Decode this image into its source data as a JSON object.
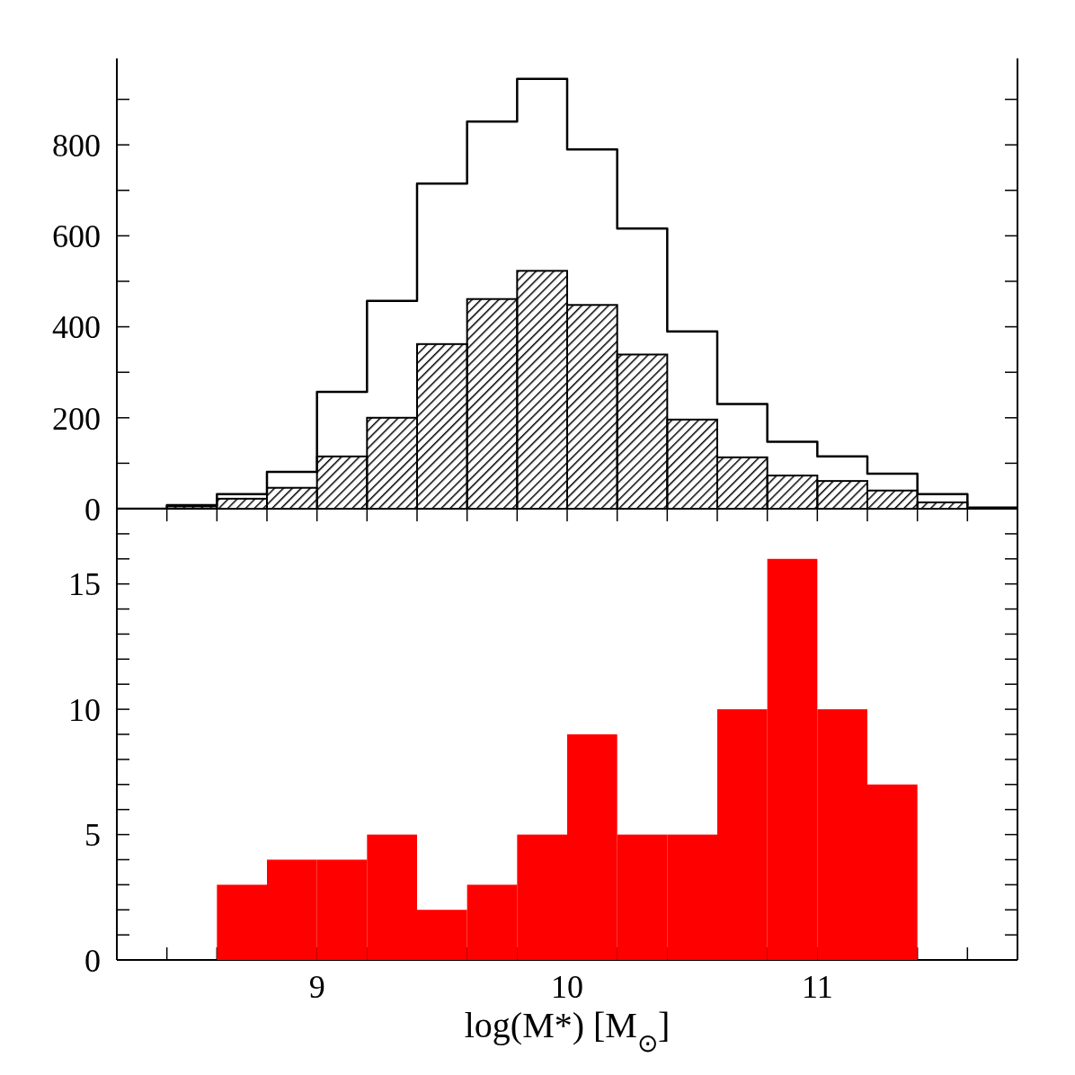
{
  "chart_data": [
    {
      "type": "histogram",
      "bins": [
        8.2,
        8.4,
        8.6,
        8.8,
        9.0,
        9.2,
        9.4,
        9.6,
        9.8,
        10.0,
        10.2,
        10.4,
        10.6,
        10.8,
        11.0,
        11.2,
        11.4,
        11.6,
        11.8
      ],
      "series": [
        {
          "type": "step",
          "color": "#000000",
          "x": [
            8.2,
            8.4,
            8.6,
            8.8,
            9.0,
            9.2,
            9.4,
            9.6,
            9.8,
            10.0,
            10.2,
            10.4,
            10.6,
            10.8,
            11.0,
            11.2,
            11.4,
            11.6
          ],
          "values": [
            0,
            8,
            32,
            81,
            257,
            457,
            715,
            851,
            945,
            790,
            616,
            390,
            230,
            147,
            115,
            77,
            32,
            6
          ]
        },
        {
          "color": "#000000",
          "values": [
            0,
            5,
            22,
            46,
            115,
            200,
            362,
            461,
            523,
            448,
            339,
            196,
            113,
            73,
            61,
            40,
            14,
            3
          ]
        }
      ],
      "xlim": [
        8.2,
        11.8
      ],
      "xticks": [
        {
          "value": 8.4,
          "label": null
        },
        {
          "value": 8.6,
          "label": null
        },
        {
          "value": 8.8,
          "label": null
        },
        {
          "value": 9,
          "label": null
        },
        {
          "value": 9.2,
          "label": null
        },
        {
          "value": 9.4,
          "label": null
        },
        {
          "value": 9.6,
          "label": null
        },
        {
          "value": 9.8,
          "label": null
        },
        {
          "value": 10,
          "label": null
        },
        {
          "value": 10.2,
          "label": null
        },
        {
          "value": 10.4,
          "label": null
        },
        {
          "value": 10.6,
          "label": null
        },
        {
          "value": 10.8,
          "label": null
        },
        {
          "value": 11,
          "label": null
        },
        {
          "value": 11.2,
          "label": null
        },
        {
          "value": 11.4,
          "label": null
        },
        {
          "value": 11.6,
          "label": null
        }
      ],
      "ylim": [
        0,
        990
      ],
      "yticks": [
        0,
        {
          "value": 100,
          "label": null
        },
        200,
        {
          "value": 300,
          "label": null
        },
        400,
        {
          "value": 500,
          "label": null
        },
        600,
        {
          "value": 700,
          "label": null
        },
        800,
        {
          "value": 900,
          "label": null
        }
      ],
      "tick_labels": "y"
    },
    {
      "type": "histogram",
      "bins": [
        8.6,
        8.8,
        9.0,
        9.2,
        9.4,
        9.6,
        9.8,
        10.0,
        10.2,
        10.4,
        10.6,
        10.8,
        11.0,
        11.2,
        11.4
      ],
      "values": [
        3,
        4,
        4,
        5,
        2,
        3,
        5,
        9,
        5,
        5,
        10,
        16,
        10,
        7
      ],
      "color": "#ff0000",
      "xlabel": "log(M*) [M$_{⊙}$]",
      "xlim": [
        8.2,
        11.8
      ],
      "xticks": [
        {
          "value": 8.4,
          "label": null
        },
        {
          "value": 8.6,
          "label": null
        },
        {
          "value": 8.8,
          "label": null
        },
        9,
        {
          "value": 9.2,
          "label": null
        },
        {
          "value": 9.4,
          "label": null
        },
        {
          "value": 9.6,
          "label": null
        },
        {
          "value": 9.8,
          "label": null
        },
        10,
        {
          "value": 10.2,
          "label": null
        },
        {
          "value": 10.4,
          "label": null
        },
        {
          "value": 10.6,
          "label": null
        },
        {
          "value": 10.8,
          "label": null
        },
        11,
        {
          "value": 11.2,
          "label": null
        },
        {
          "value": 11.4,
          "label": null
        },
        {
          "value": 11.6,
          "label": null
        }
      ],
      "ylim": [
        0,
        18
      ],
      "yticks": [
        0,
        {
          "value": 1,
          "label": null
        },
        {
          "value": 2,
          "label": null
        },
        {
          "value": 3,
          "label": null
        },
        {
          "value": 4,
          "label": null
        },
        5,
        {
          "value": 6,
          "label": null
        },
        {
          "value": 7,
          "label": null
        },
        {
          "value": 8,
          "label": null
        },
        {
          "value": 9,
          "label": null
        },
        10,
        {
          "value": 11,
          "label": null
        },
        {
          "value": 12,
          "label": null
        },
        {
          "value": 13,
          "label": null
        },
        {
          "value": 14,
          "label": null
        },
        15,
        {
          "value": 16,
          "label": null
        },
        {
          "value": 17,
          "label": null
        }
      ]
    }
  ]
}
